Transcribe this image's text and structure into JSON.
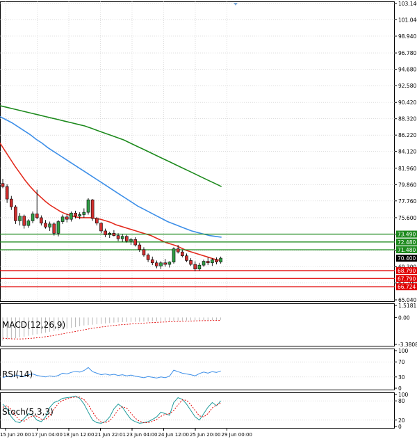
{
  "colors": {
    "background": "#ffffff",
    "grid": "#c8c8c8",
    "axis": "#000000",
    "candle_up": "#000000",
    "candle_down": "#000000",
    "candle_body_up": "#2e9e44",
    "candle_body_down": "#d12f2f",
    "ma_fast": "#e32b1e",
    "ma_mid": "#3d8fe8",
    "ma_slow": "#1d8a1d",
    "resistance": "#1d8a1d",
    "support": "#e00000",
    "price_tag": "#000000",
    "macd_hist": "#a8a8a8",
    "macd_signal": "#e00000",
    "rsi": "#3d8fe8",
    "stoch_main": "#1d9a9a",
    "stoch_signal": "#e00000"
  },
  "main_axis": {
    "ticks": [
      "103.140",
      "101.040",
      "98.940",
      "96.780",
      "94.680",
      "92.580",
      "90.420",
      "88.320",
      "86.220",
      "84.120",
      "81.960",
      "79.860",
      "77.760",
      "75.600",
      "73.500",
      "71.400",
      "69.300",
      "67.200",
      "65.040"
    ],
    "ylim": [
      65.04,
      103.14
    ]
  },
  "levels": {
    "resistance": [
      {
        "label": "73.490",
        "value": 73.49
      },
      {
        "label": "72.480",
        "value": 72.48
      },
      {
        "label": "71.480",
        "value": 71.48
      }
    ],
    "support": [
      {
        "label": "68.790",
        "value": 68.79
      },
      {
        "label": "67.790",
        "value": 67.79
      },
      {
        "label": "66.724",
        "value": 66.724
      }
    ],
    "current": {
      "label": "70.400",
      "value": 70.4
    }
  },
  "chart_data": {
    "type": "candlestick",
    "x_tick_labels": [
      "15 Jun 20:00",
      "17 Jun 04:00",
      "18 Jun 12:00",
      "21 Jun 22:01",
      "23 Jun 04:00",
      "24 Jun 12:00",
      "25 Jun 20:00",
      "29 Jun 00:00"
    ],
    "ohlc": [
      {
        "o": 80.0,
        "h": 80.6,
        "l": 79.4,
        "c": 79.6
      },
      {
        "o": 79.6,
        "h": 79.9,
        "l": 77.5,
        "c": 78.0
      },
      {
        "o": 78.0,
        "h": 78.4,
        "l": 76.6,
        "c": 77.0
      },
      {
        "o": 77.0,
        "h": 77.2,
        "l": 74.8,
        "c": 75.2
      },
      {
        "o": 75.2,
        "h": 76.2,
        "l": 74.6,
        "c": 75.8
      },
      {
        "o": 75.8,
        "h": 76.0,
        "l": 74.2,
        "c": 74.6
      },
      {
        "o": 74.6,
        "h": 75.4,
        "l": 74.3,
        "c": 75.2
      },
      {
        "o": 75.2,
        "h": 76.4,
        "l": 74.9,
        "c": 76.1
      },
      {
        "o": 76.1,
        "h": 79.2,
        "l": 75.4,
        "c": 75.6
      },
      {
        "o": 75.6,
        "h": 75.9,
        "l": 74.6,
        "c": 74.9
      },
      {
        "o": 74.9,
        "h": 75.3,
        "l": 74.2,
        "c": 74.4
      },
      {
        "o": 74.4,
        "h": 75.1,
        "l": 73.9,
        "c": 74.8
      },
      {
        "o": 74.8,
        "h": 75.0,
        "l": 73.3,
        "c": 73.6
      },
      {
        "o": 73.6,
        "h": 75.3,
        "l": 73.2,
        "c": 75.1
      },
      {
        "o": 75.1,
        "h": 76.0,
        "l": 74.8,
        "c": 75.7
      },
      {
        "o": 75.7,
        "h": 76.1,
        "l": 75.0,
        "c": 75.4
      },
      {
        "o": 75.4,
        "h": 76.4,
        "l": 75.1,
        "c": 76.2
      },
      {
        "o": 76.2,
        "h": 76.5,
        "l": 75.5,
        "c": 75.8
      },
      {
        "o": 75.8,
        "h": 76.3,
        "l": 75.4,
        "c": 76.0
      },
      {
        "o": 76.0,
        "h": 76.8,
        "l": 75.6,
        "c": 76.3
      },
      {
        "o": 76.3,
        "h": 78.1,
        "l": 76.0,
        "c": 77.9
      },
      {
        "o": 77.9,
        "h": 78.0,
        "l": 75.2,
        "c": 75.5
      },
      {
        "o": 75.5,
        "h": 75.7,
        "l": 74.6,
        "c": 74.9
      },
      {
        "o": 74.9,
        "h": 75.0,
        "l": 73.6,
        "c": 73.9
      },
      {
        "o": 73.9,
        "h": 74.2,
        "l": 73.1,
        "c": 73.4
      },
      {
        "o": 73.4,
        "h": 73.8,
        "l": 73.0,
        "c": 73.6
      },
      {
        "o": 73.6,
        "h": 74.0,
        "l": 73.2,
        "c": 73.3
      },
      {
        "o": 73.3,
        "h": 73.6,
        "l": 72.6,
        "c": 72.9
      },
      {
        "o": 72.9,
        "h": 73.5,
        "l": 72.5,
        "c": 73.2
      },
      {
        "o": 73.2,
        "h": 73.4,
        "l": 72.4,
        "c": 72.6
      },
      {
        "o": 72.6,
        "h": 73.0,
        "l": 72.1,
        "c": 72.8
      },
      {
        "o": 72.8,
        "h": 73.1,
        "l": 71.9,
        "c": 72.1
      },
      {
        "o": 72.1,
        "h": 72.4,
        "l": 71.2,
        "c": 71.5
      },
      {
        "o": 71.5,
        "h": 71.8,
        "l": 70.6,
        "c": 70.8
      },
      {
        "o": 70.8,
        "h": 71.0,
        "l": 69.9,
        "c": 70.2
      },
      {
        "o": 70.2,
        "h": 70.6,
        "l": 69.5,
        "c": 69.8
      },
      {
        "o": 69.8,
        "h": 70.1,
        "l": 69.1,
        "c": 69.4
      },
      {
        "o": 69.4,
        "h": 70.0,
        "l": 69.0,
        "c": 69.8
      },
      {
        "o": 69.8,
        "h": 70.3,
        "l": 69.3,
        "c": 69.6
      },
      {
        "o": 69.6,
        "h": 70.0,
        "l": 69.2,
        "c": 69.9
      },
      {
        "o": 69.9,
        "h": 71.8,
        "l": 69.7,
        "c": 71.6
      },
      {
        "o": 71.6,
        "h": 72.1,
        "l": 71.0,
        "c": 71.2
      },
      {
        "o": 71.2,
        "h": 71.5,
        "l": 70.5,
        "c": 70.7
      },
      {
        "o": 70.7,
        "h": 71.0,
        "l": 69.9,
        "c": 70.1
      },
      {
        "o": 70.1,
        "h": 70.4,
        "l": 69.4,
        "c": 69.6
      },
      {
        "o": 69.6,
        "h": 70.0,
        "l": 68.7,
        "c": 69.0
      },
      {
        "o": 69.0,
        "h": 69.8,
        "l": 68.8,
        "c": 69.5
      },
      {
        "o": 69.5,
        "h": 70.2,
        "l": 69.3,
        "c": 70.0
      },
      {
        "o": 70.0,
        "h": 70.5,
        "l": 69.5,
        "c": 69.8
      },
      {
        "o": 69.8,
        "h": 70.4,
        "l": 69.4,
        "c": 70.2
      },
      {
        "o": 70.2,
        "h": 70.5,
        "l": 69.6,
        "c": 69.9
      },
      {
        "o": 69.9,
        "h": 70.6,
        "l": 69.7,
        "c": 70.4
      }
    ],
    "ma_fast": [
      85.2,
      84.2,
      83.2,
      82.2,
      81.3,
      80.4,
      79.6,
      78.9,
      78.3,
      77.7,
      77.2,
      76.8,
      76.4,
      76.1,
      75.9,
      75.7,
      75.6,
      75.6,
      75.6,
      75.5,
      75.4,
      75.2,
      75.0,
      74.7,
      74.5,
      74.3,
      74.1,
      73.9,
      73.7,
      73.5,
      73.3,
      73.0,
      72.7,
      72.4,
      72.2,
      72.0,
      71.7,
      71.4,
      71.2,
      71.0,
      70.8,
      70.6,
      70.4,
      70.2,
      70.1
    ],
    "ma_mid": [
      88.6,
      88.2,
      87.8,
      87.3,
      86.8,
      86.3,
      85.7,
      85.2,
      84.6,
      84.1,
      83.6,
      83.1,
      82.6,
      82.1,
      81.6,
      81.1,
      80.6,
      80.1,
      79.6,
      79.1,
      78.6,
      78.1,
      77.6,
      77.1,
      76.7,
      76.3,
      75.9,
      75.5,
      75.1,
      74.8,
      74.5,
      74.2,
      73.9,
      73.7,
      73.5,
      73.3,
      73.2,
      73.1
    ],
    "ma_slow": [
      90.0,
      89.8,
      89.6,
      89.4,
      89.2,
      89.0,
      88.8,
      88.6,
      88.4,
      88.2,
      88.0,
      87.8,
      87.6,
      87.4,
      87.1,
      86.8,
      86.5,
      86.2,
      85.9,
      85.6,
      85.2,
      84.8,
      84.4,
      84.0,
      83.6,
      83.2,
      82.8,
      82.4,
      82.0,
      81.6,
      81.2,
      80.8,
      80.4,
      80.0,
      79.6
    ],
    "macd": {
      "name": "MACD(12,26,9)",
      "ticks": [
        "1.5181",
        "0.00",
        "-3.3808"
      ],
      "ylim": [
        -3.3808,
        1.5181
      ],
      "hist": [
        -2.9,
        -2.8,
        -2.7,
        -2.6,
        -2.5,
        -2.4,
        -2.3,
        -2.2,
        -2.1,
        -2.0,
        -1.9,
        -1.8,
        -1.7,
        -1.6,
        -1.5,
        -1.4,
        -1.3,
        -1.2,
        -1.1,
        -1.0,
        -0.95,
        -0.9,
        -0.85,
        -0.8,
        -0.75,
        -0.7,
        -0.65,
        -0.6,
        -0.58,
        -0.56,
        -0.55,
        -0.54,
        -0.53,
        -0.52,
        -0.5,
        -0.48,
        -0.46,
        -0.45,
        -0.44,
        -0.43,
        -0.42,
        -0.41,
        -0.4,
        -0.38,
        -0.37,
        -0.36,
        -0.35,
        -0.34,
        -0.33,
        -0.32,
        -0.31,
        -0.3
      ],
      "signal": [
        -2.6,
        -2.65,
        -2.68,
        -2.7,
        -2.7,
        -2.68,
        -2.65,
        -2.6,
        -2.55,
        -2.5,
        -2.42,
        -2.34,
        -2.25,
        -2.15,
        -2.05,
        -1.95,
        -1.85,
        -1.75,
        -1.65,
        -1.55,
        -1.45,
        -1.35,
        -1.27,
        -1.2,
        -1.13,
        -1.06,
        -1.0,
        -0.94,
        -0.9,
        -0.86,
        -0.82,
        -0.78,
        -0.74,
        -0.7,
        -0.67,
        -0.64,
        -0.61,
        -0.58,
        -0.56,
        -0.54,
        -0.52,
        -0.5,
        -0.48,
        -0.46,
        -0.44,
        -0.42,
        -0.41,
        -0.4,
        -0.39,
        -0.38,
        -0.37,
        -0.36
      ]
    },
    "rsi": {
      "name": "RSI(14)",
      "ticks": [
        "100",
        "70",
        "30",
        "0"
      ],
      "ylim": [
        0,
        100
      ],
      "values": [
        28,
        32,
        30,
        35,
        33,
        31,
        36,
        38,
        34,
        32,
        30,
        33,
        31,
        34,
        40,
        38,
        42,
        45,
        43,
        47,
        55,
        44,
        40,
        36,
        38,
        35,
        37,
        34,
        36,
        33,
        35,
        32,
        30,
        28,
        31,
        29,
        27,
        30,
        28,
        32,
        48,
        44,
        40,
        38,
        36,
        33,
        39,
        43,
        40,
        44,
        42,
        46
      ]
    },
    "stoch": {
      "name": "Stoch(5,3,3)",
      "ticks": [
        "100",
        "80",
        "20",
        "0"
      ],
      "ylim": [
        0,
        100
      ],
      "main": [
        70,
        55,
        30,
        15,
        12,
        25,
        40,
        35,
        20,
        15,
        30,
        60,
        75,
        80,
        88,
        90,
        92,
        95,
        88,
        70,
        45,
        20,
        12,
        10,
        15,
        30,
        55,
        70,
        60,
        40,
        22,
        15,
        10,
        12,
        15,
        22,
        30,
        45,
        40,
        35,
        75,
        90,
        85,
        70,
        50,
        30,
        20,
        40,
        60,
        75,
        65,
        80
      ],
      "signal": [
        60,
        65,
        52,
        33,
        19,
        17,
        26,
        33,
        32,
        23,
        22,
        35,
        55,
        72,
        81,
        86,
        90,
        92,
        92,
        84,
        68,
        45,
        26,
        14,
        12,
        18,
        33,
        52,
        62,
        57,
        41,
        26,
        16,
        12,
        12,
        16,
        22,
        32,
        38,
        40,
        50,
        67,
        83,
        82,
        68,
        50,
        33,
        30,
        40,
        58,
        67,
        73
      ]
    }
  }
}
